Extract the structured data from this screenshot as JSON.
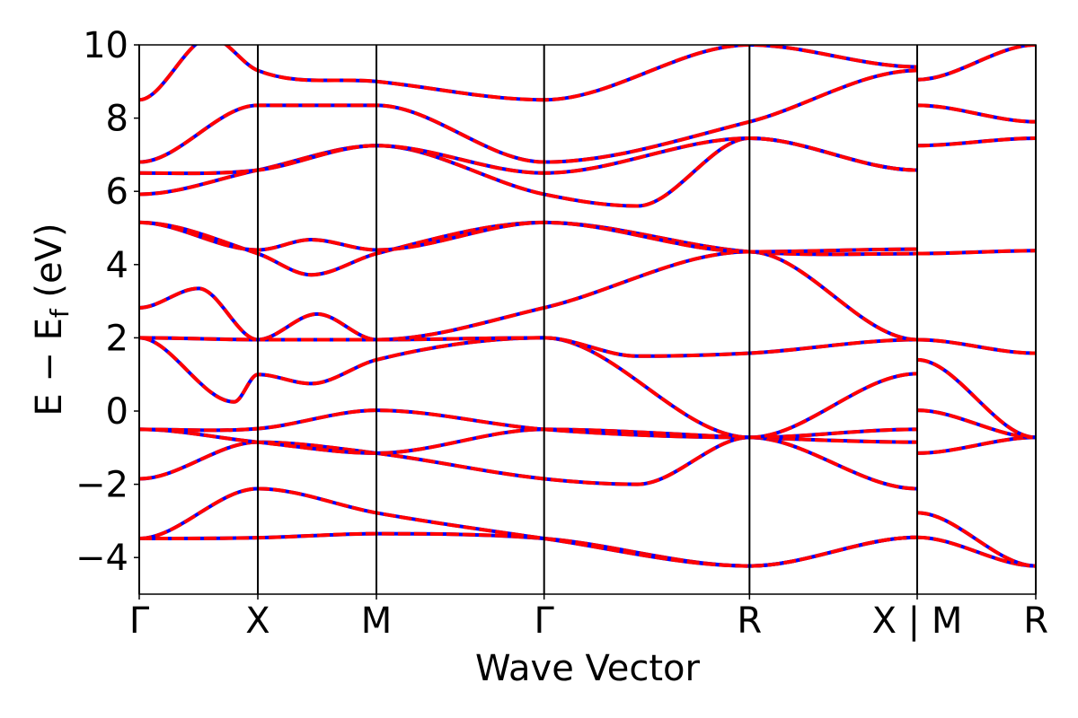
{
  "chart_data": {
    "type": "line",
    "title": "",
    "xlabel": "Wave Vector",
    "ylabel": "E − E_f (eV)",
    "ylabel_parts": {
      "main": "E − E",
      "sub": "f",
      "unit": " (eV)"
    },
    "ylim": [
      -5,
      10
    ],
    "yticks": [
      -4,
      -2,
      0,
      2,
      4,
      6,
      8,
      10
    ],
    "ytick_labels": [
      "−4",
      "−2",
      "0",
      "2",
      "4",
      "6",
      "8",
      "10"
    ],
    "kpath_positions": [
      0,
      1.0,
      2.0,
      3.414,
      5.146,
      6.56,
      7.56
    ],
    "kpath_labels": [
      "Γ",
      "X",
      "M",
      "Γ",
      "R",
      "X | M",
      "R"
    ],
    "xlim": [
      0,
      7.56
    ],
    "grid": false,
    "legend": "none",
    "colors": {
      "solid": "#0000ff",
      "dashed": "#ff0000",
      "vline": "#000000"
    },
    "bands": [
      {
        "k": [
          0,
          1.0,
          2.0,
          3.414,
          5.146,
          6.56
        ],
        "e": [
          -3.48,
          -3.46,
          -3.35,
          -3.48,
          -4.23,
          -3.45
        ]
      },
      {
        "k": [
          0,
          1.0,
          2.0,
          3.414,
          5.146,
          6.56
        ],
        "e": [
          -3.48,
          -2.12,
          -2.78,
          -3.48,
          -4.23,
          -3.45
        ]
      },
      {
        "k": [
          0,
          1.0,
          2.0,
          3.414,
          4.2,
          5.146,
          6.56
        ],
        "e": [
          -1.85,
          -0.85,
          -1.15,
          -1.85,
          -2.0,
          -0.72,
          -2.12
        ]
      },
      {
        "k": [
          0,
          1.0,
          2.0,
          3.414,
          5.146,
          6.56
        ],
        "e": [
          -0.5,
          -0.85,
          -1.15,
          -0.5,
          -0.72,
          -0.85
        ]
      },
      {
        "k": [
          0,
          1.0,
          2.0,
          3.414,
          5.146,
          6.56
        ],
        "e": [
          -0.5,
          -0.48,
          0.02,
          -0.5,
          -0.72,
          -0.5
        ]
      },
      {
        "k": [
          0,
          0.8,
          1.0,
          1.45,
          2.0,
          3.414,
          5.146,
          6.56
        ],
        "e": [
          2.0,
          0.25,
          1.0,
          0.75,
          1.4,
          2.0,
          -0.72,
          1.02
        ]
      },
      {
        "k": [
          0,
          1.0,
          2.0,
          3.414,
          4.2,
          5.146,
          6.56
        ],
        "e": [
          2.0,
          1.95,
          1.95,
          2.0,
          1.5,
          1.58,
          1.95
        ]
      },
      {
        "k": [
          0,
          0.5,
          1.0,
          1.5,
          2.0,
          3.414,
          5.146,
          6.56
        ],
        "e": [
          2.82,
          3.35,
          1.95,
          2.65,
          1.95,
          2.82,
          4.35,
          1.95
        ]
      },
      {
        "k": [
          0,
          1.0,
          1.45,
          2.0,
          3.414,
          5.146,
          6.56
        ],
        "e": [
          5.15,
          4.3,
          3.72,
          4.3,
          5.15,
          4.35,
          4.3
        ]
      },
      {
        "k": [
          0,
          1.0,
          1.45,
          2.0,
          3.414,
          5.146,
          6.56
        ],
        "e": [
          5.15,
          4.4,
          4.68,
          4.4,
          5.15,
          4.35,
          4.42
        ]
      },
      {
        "k": [
          0,
          1.0,
          2.0,
          3.414,
          4.2,
          5.146,
          6.56
        ],
        "e": [
          5.92,
          6.58,
          7.25,
          5.92,
          5.6,
          7.45,
          6.58
        ]
      },
      {
        "k": [
          0,
          1.0,
          2.0,
          3.414,
          5.146,
          6.56
        ],
        "e": [
          6.5,
          6.58,
          7.25,
          6.5,
          7.45,
          6.58
        ]
      },
      {
        "k": [
          0,
          1.0,
          2.0,
          3.414,
          5.146,
          6.56
        ],
        "e": [
          6.8,
          8.35,
          8.35,
          6.8,
          7.9,
          9.3
        ]
      },
      {
        "k": [
          0,
          0.6,
          1.0,
          2.0,
          3.414,
          5.146,
          6.56
        ],
        "e": [
          8.5,
          10.2,
          9.3,
          9.0,
          8.5,
          10.0,
          9.4
        ]
      },
      {
        "k": [
          6.56,
          7.56
        ],
        "e": [
          -3.45,
          -4.23
        ]
      },
      {
        "k": [
          6.56,
          7.56
        ],
        "e": [
          -2.78,
          -4.23
        ]
      },
      {
        "k": [
          6.56,
          7.56
        ],
        "e": [
          -1.15,
          -0.72
        ]
      },
      {
        "k": [
          6.56,
          7.56
        ],
        "e": [
          0.02,
          -0.72
        ]
      },
      {
        "k": [
          6.56,
          7.56
        ],
        "e": [
          1.4,
          -0.72
        ]
      },
      {
        "k": [
          6.56,
          7.56
        ],
        "e": [
          1.95,
          1.58
        ]
      },
      {
        "k": [
          6.56,
          7.56
        ],
        "e": [
          4.3,
          4.38
        ]
      },
      {
        "k": [
          6.56,
          7.56
        ],
        "e": [
          7.25,
          7.45
        ]
      },
      {
        "k": [
          6.56,
          7.56
        ],
        "e": [
          8.35,
          7.9
        ]
      },
      {
        "k": [
          6.56,
          7.56
        ],
        "e": [
          9.05,
          10.0
        ]
      }
    ]
  }
}
